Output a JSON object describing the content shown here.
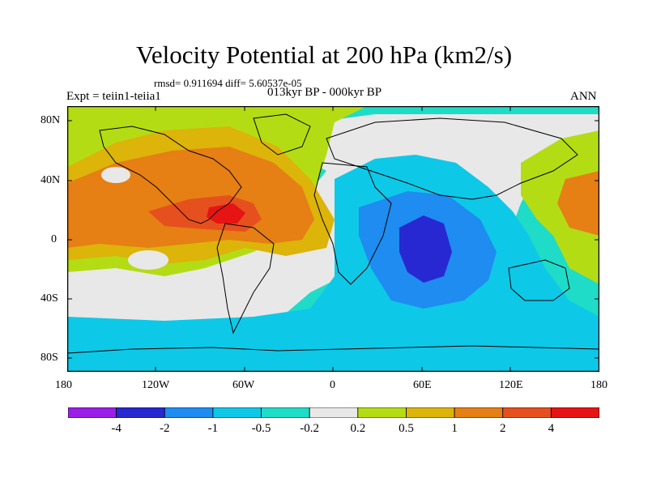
{
  "title": "Velocity Potential at 200 hPa (km2/s)",
  "stats": "rmsd= 0.911694 diff= 5.60537e-05",
  "experiment": "Expt = teiin1-teiia1",
  "period": "013kyr BP - 000kyr BP",
  "season": "ANN",
  "lat_labels": [
    "80N",
    "40N",
    "0",
    "40S",
    "80S"
  ],
  "lon_labels": [
    "180",
    "120W",
    "60W",
    "0",
    "60E",
    "120E",
    "180"
  ],
  "colorbar": {
    "labels": [
      "-4",
      "-2",
      "-1",
      "-0.5",
      "-0.2",
      "0.2",
      "0.5",
      "1",
      "2",
      "4"
    ],
    "colors": [
      "#9a1ee6",
      "#2828d2",
      "#1e8cf0",
      "#0ec8e8",
      "#1edcc8",
      "#e8e8e8",
      "#b4dc14",
      "#dcb40a",
      "#e67f14",
      "#e6501e",
      "#e61414"
    ]
  }
}
